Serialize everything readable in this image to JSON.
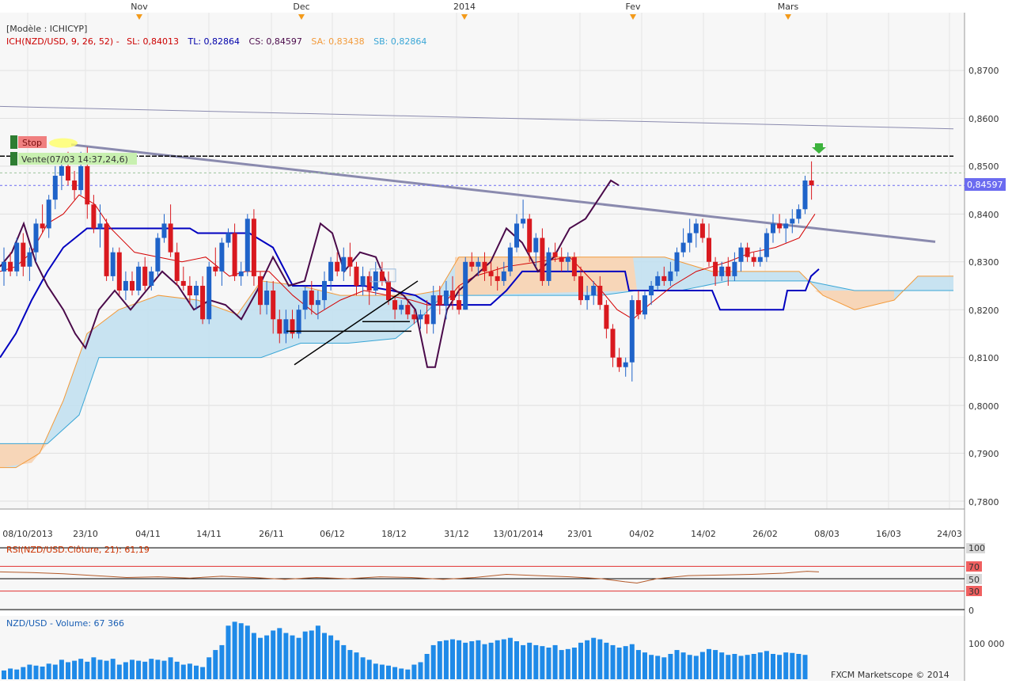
{
  "colors": {
    "up": "#1f63c9",
    "down": "#d9191f",
    "tenkan": "#d40000",
    "kijun": "#0000c0",
    "chikou": "#4a0a4a",
    "kumo_bull": "#bfdff0",
    "kumo_bear": "#f7d6b8",
    "span_a": "#f39a3a",
    "span_b": "#3aa6d6",
    "trendline": "#8a8aae",
    "volume": "#1f8ae8"
  },
  "top_axis": {
    "labels": [
      "Nov",
      "Dec",
      "2014",
      "Fev",
      "Mars"
    ]
  },
  "header": {
    "model": "[Modèle : ICHICYP]",
    "ich_label": "ICH(NZD/USD, 9, 26, 52) -",
    "sl": "SL: 0,84013",
    "tl": "TL: 0,82864",
    "cs": "CS: 0,84597",
    "sa": "SA: 0,83438",
    "sb": "SB: 0,82864"
  },
  "orders": {
    "stop_label": "Stop",
    "sell_label": "Vente(07/03 14:37,24,6)"
  },
  "price_axis": {
    "ticks": [
      "0,8700",
      "0,8600",
      "0,8500",
      "0,8400",
      "0,8300",
      "0,8200",
      "0,8100",
      "0,8000",
      "0,7900",
      "0,7800"
    ],
    "current": "0,84597"
  },
  "date_axis": {
    "labels": [
      "08/10/2013",
      "23/10",
      "04/11",
      "14/11",
      "26/11",
      "06/12",
      "18/12",
      "31/12",
      "13/01/2014",
      "23/01",
      "04/02",
      "14/02",
      "26/02",
      "08/03",
      "16/03",
      "24/03"
    ]
  },
  "rsi_panel": {
    "label": "RSI(NZD/USD.Clôture, 21): 61,19",
    "ticks": [
      "100",
      "70",
      "50",
      "30",
      "0"
    ]
  },
  "volume_panel": {
    "label": "NZD/USD - Volume: 67 366",
    "tick": "100 000",
    "copyright": "FXCM Marketscope © 2014"
  },
  "chart_data": {
    "type": "candlestick",
    "symbol": "NZD/USD",
    "ylim": [
      0.775,
      0.88
    ],
    "candles": [
      [
        0.828,
        0.833,
        0.825,
        0.83
      ],
      [
        0.83,
        0.832,
        0.827,
        0.828
      ],
      [
        0.828,
        0.835,
        0.827,
        0.834
      ],
      [
        0.834,
        0.836,
        0.827,
        0.829
      ],
      [
        0.829,
        0.833,
        0.826,
        0.832
      ],
      [
        0.832,
        0.839,
        0.83,
        0.838
      ],
      [
        0.838,
        0.842,
        0.836,
        0.837
      ],
      [
        0.837,
        0.844,
        0.835,
        0.843
      ],
      [
        0.843,
        0.85,
        0.841,
        0.848
      ],
      [
        0.848,
        0.852,
        0.845,
        0.85
      ],
      [
        0.85,
        0.853,
        0.846,
        0.847
      ],
      [
        0.847,
        0.849,
        0.843,
        0.845
      ],
      [
        0.845,
        0.853,
        0.844,
        0.85
      ],
      [
        0.85,
        0.854,
        0.839,
        0.842
      ],
      [
        0.842,
        0.844,
        0.836,
        0.837
      ],
      [
        0.837,
        0.842,
        0.833,
        0.838
      ],
      [
        0.838,
        0.839,
        0.826,
        0.827
      ],
      [
        0.827,
        0.833,
        0.826,
        0.832
      ],
      [
        0.832,
        0.833,
        0.823,
        0.824
      ],
      [
        0.824,
        0.828,
        0.822,
        0.826
      ],
      [
        0.826,
        0.828,
        0.823,
        0.824
      ],
      [
        0.824,
        0.83,
        0.823,
        0.829
      ],
      [
        0.829,
        0.831,
        0.824,
        0.825
      ],
      [
        0.825,
        0.829,
        0.824,
        0.828
      ],
      [
        0.828,
        0.836,
        0.827,
        0.835
      ],
      [
        0.835,
        0.84,
        0.834,
        0.838
      ],
      [
        0.838,
        0.842,
        0.831,
        0.832
      ],
      [
        0.832,
        0.834,
        0.825,
        0.826
      ],
      [
        0.826,
        0.829,
        0.824,
        0.825
      ],
      [
        0.825,
        0.827,
        0.821,
        0.823
      ],
      [
        0.823,
        0.826,
        0.82,
        0.825
      ],
      [
        0.825,
        0.827,
        0.817,
        0.818
      ],
      [
        0.818,
        0.83,
        0.817,
        0.829
      ],
      [
        0.829,
        0.833,
        0.827,
        0.828
      ],
      [
        0.828,
        0.835,
        0.825,
        0.834
      ],
      [
        0.834,
        0.837,
        0.833,
        0.836
      ],
      [
        0.836,
        0.838,
        0.826,
        0.827
      ],
      [
        0.827,
        0.83,
        0.825,
        0.828
      ],
      [
        0.828,
        0.84,
        0.827,
        0.839
      ],
      [
        0.839,
        0.841,
        0.825,
        0.827
      ],
      [
        0.827,
        0.828,
        0.819,
        0.821
      ],
      [
        0.821,
        0.826,
        0.819,
        0.824
      ],
      [
        0.824,
        0.826,
        0.815,
        0.818
      ],
      [
        0.818,
        0.82,
        0.813,
        0.815
      ],
      [
        0.815,
        0.82,
        0.813,
        0.818
      ],
      [
        0.818,
        0.82,
        0.814,
        0.815
      ],
      [
        0.815,
        0.821,
        0.814,
        0.82
      ],
      [
        0.82,
        0.825,
        0.818,
        0.824
      ],
      [
        0.824,
        0.826,
        0.819,
        0.821
      ],
      [
        0.821,
        0.824,
        0.818,
        0.822
      ],
      [
        0.822,
        0.828,
        0.82,
        0.826
      ],
      [
        0.826,
        0.831,
        0.824,
        0.83
      ],
      [
        0.83,
        0.832,
        0.827,
        0.828
      ],
      [
        0.828,
        0.833,
        0.826,
        0.831
      ],
      [
        0.831,
        0.834,
        0.827,
        0.829
      ],
      [
        0.829,
        0.83,
        0.823,
        0.825
      ],
      [
        0.825,
        0.829,
        0.823,
        0.827
      ],
      [
        0.827,
        0.828,
        0.821,
        0.824
      ],
      [
        0.824,
        0.83,
        0.823,
        0.828
      ],
      [
        0.828,
        0.83,
        0.825,
        0.826
      ],
      [
        0.826,
        0.828,
        0.821,
        0.822
      ],
      [
        0.822,
        0.823,
        0.818,
        0.82
      ],
      [
        0.82,
        0.822,
        0.819,
        0.821
      ],
      [
        0.821,
        0.822,
        0.818,
        0.819
      ],
      [
        0.819,
        0.82,
        0.817,
        0.818
      ],
      [
        0.818,
        0.82,
        0.816,
        0.819
      ],
      [
        0.819,
        0.822,
        0.815,
        0.817
      ],
      [
        0.817,
        0.825,
        0.815,
        0.823
      ],
      [
        0.823,
        0.825,
        0.819,
        0.821
      ],
      [
        0.821,
        0.826,
        0.818,
        0.824
      ],
      [
        0.824,
        0.827,
        0.82,
        0.822
      ],
      [
        0.822,
        0.825,
        0.819,
        0.82
      ],
      [
        0.82,
        0.831,
        0.82,
        0.83
      ],
      [
        0.83,
        0.832,
        0.828,
        0.829
      ],
      [
        0.829,
        0.831,
        0.827,
        0.83
      ],
      [
        0.83,
        0.832,
        0.826,
        0.828
      ],
      [
        0.828,
        0.83,
        0.825,
        0.827
      ],
      [
        0.827,
        0.829,
        0.824,
        0.826
      ],
      [
        0.826,
        0.83,
        0.825,
        0.828
      ],
      [
        0.828,
        0.834,
        0.827,
        0.833
      ],
      [
        0.833,
        0.84,
        0.832,
        0.838
      ],
      [
        0.838,
        0.843,
        0.837,
        0.839
      ],
      [
        0.839,
        0.84,
        0.83,
        0.832
      ],
      [
        0.832,
        0.836,
        0.829,
        0.835
      ],
      [
        0.835,
        0.837,
        0.825,
        0.826
      ],
      [
        0.826,
        0.833,
        0.825,
        0.832
      ],
      [
        0.832,
        0.834,
        0.83,
        0.831
      ],
      [
        0.831,
        0.833,
        0.828,
        0.83
      ],
      [
        0.83,
        0.832,
        0.828,
        0.831
      ],
      [
        0.831,
        0.832,
        0.826,
        0.827
      ],
      [
        0.827,
        0.829,
        0.821,
        0.822
      ],
      [
        0.822,
        0.825,
        0.82,
        0.823
      ],
      [
        0.823,
        0.826,
        0.821,
        0.825
      ],
      [
        0.825,
        0.827,
        0.82,
        0.821
      ],
      [
        0.821,
        0.822,
        0.814,
        0.816
      ],
      [
        0.816,
        0.817,
        0.808,
        0.81
      ],
      [
        0.81,
        0.812,
        0.807,
        0.808
      ],
      [
        0.808,
        0.81,
        0.806,
        0.809
      ],
      [
        0.809,
        0.823,
        0.805,
        0.822
      ],
      [
        0.822,
        0.824,
        0.818,
        0.819
      ],
      [
        0.819,
        0.824,
        0.818,
        0.823
      ],
      [
        0.823,
        0.826,
        0.821,
        0.825
      ],
      [
        0.825,
        0.828,
        0.824,
        0.827
      ],
      [
        0.827,
        0.829,
        0.825,
        0.826
      ],
      [
        0.826,
        0.83,
        0.825,
        0.828
      ],
      [
        0.828,
        0.833,
        0.827,
        0.832
      ],
      [
        0.832,
        0.837,
        0.831,
        0.834
      ],
      [
        0.834,
        0.839,
        0.832,
        0.836
      ],
      [
        0.836,
        0.839,
        0.833,
        0.838
      ],
      [
        0.838,
        0.839,
        0.834,
        0.835
      ],
      [
        0.835,
        0.838,
        0.829,
        0.83
      ],
      [
        0.83,
        0.831,
        0.825,
        0.827
      ],
      [
        0.827,
        0.83,
        0.826,
        0.829
      ],
      [
        0.829,
        0.831,
        0.825,
        0.827
      ],
      [
        0.827,
        0.832,
        0.826,
        0.83
      ],
      [
        0.83,
        0.834,
        0.828,
        0.833
      ],
      [
        0.833,
        0.834,
        0.83,
        0.831
      ],
      [
        0.831,
        0.832,
        0.829,
        0.83
      ],
      [
        0.83,
        0.833,
        0.829,
        0.831
      ],
      [
        0.831,
        0.837,
        0.83,
        0.836
      ],
      [
        0.836,
        0.84,
        0.834,
        0.838
      ],
      [
        0.838,
        0.84,
        0.836,
        0.837
      ],
      [
        0.837,
        0.839,
        0.834,
        0.838
      ],
      [
        0.838,
        0.841,
        0.836,
        0.839
      ],
      [
        0.839,
        0.842,
        0.838,
        0.841
      ],
      [
        0.841,
        0.848,
        0.84,
        0.847
      ],
      [
        0.847,
        0.851,
        0.843,
        0.846
      ]
    ],
    "volume_ylim": [
      0,
      130000
    ]
  }
}
